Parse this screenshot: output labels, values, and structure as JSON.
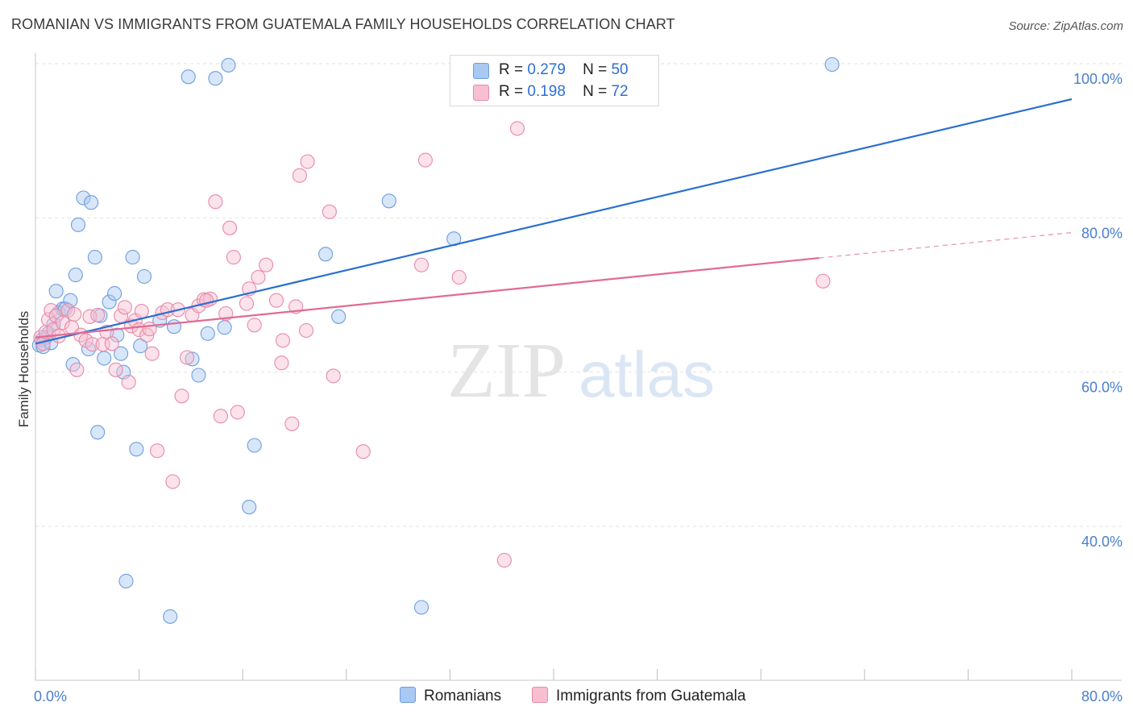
{
  "title": "ROMANIAN VS IMMIGRANTS FROM GUATEMALA FAMILY HOUSEHOLDS CORRELATION CHART",
  "source": "Source: ZipAtlas.com",
  "watermark": {
    "zip": "ZIP",
    "atlas": "atlas"
  },
  "legend": {
    "r_label": "R =",
    "n_label": "N =",
    "rows": [
      {
        "r": "0.279",
        "n": "50",
        "color": "#a9c8f2",
        "border": "#6d9ee0"
      },
      {
        "r": "0.198",
        "n": "72",
        "color": "#f8bfd0",
        "border": "#e88aa8"
      }
    ]
  },
  "bottom_legend": [
    "Romanians",
    "Immigrants from Guatemala"
  ],
  "chart_data": {
    "type": "scatter",
    "title": "ROMANIAN VS IMMIGRANTS FROM GUATEMALA FAMILY HOUSEHOLDS CORRELATION CHART",
    "xlabel": "",
    "ylabel": "Family Households",
    "xlim": [
      0,
      80
    ],
    "ylim": [
      20,
      100
    ],
    "x_tick_labels": [
      "0.0%",
      "80.0%"
    ],
    "y_ticks": [
      40,
      60,
      80,
      100
    ],
    "y_tick_labels": [
      "40.0%",
      "60.0%",
      "80.0%",
      "100.0%"
    ],
    "grid": true,
    "legend_position": "top-center",
    "series": [
      {
        "name": "Romanians",
        "color": "#6d9ee0",
        "fill": "#a9c8f2",
        "trend": {
          "x": [
            0,
            80
          ],
          "y": [
            63.7,
            95.4
          ]
        },
        "points": [
          [
            0.3,
            63.5
          ],
          [
            0.5,
            64.2
          ],
          [
            0.6,
            63.3
          ],
          [
            0.8,
            64.5
          ],
          [
            1.0,
            65.0
          ],
          [
            1.2,
            63.8
          ],
          [
            1.4,
            66.2
          ],
          [
            1.6,
            70.5
          ],
          [
            1.8,
            67.7
          ],
          [
            2.1,
            68.2
          ],
          [
            2.3,
            68.2
          ],
          [
            2.7,
            69.3
          ],
          [
            2.9,
            61.0
          ],
          [
            3.1,
            72.6
          ],
          [
            3.3,
            79.1
          ],
          [
            3.7,
            82.6
          ],
          [
            4.1,
            63.0
          ],
          [
            4.3,
            82.0
          ],
          [
            4.6,
            74.9
          ],
          [
            4.8,
            52.2
          ],
          [
            5.0,
            67.3
          ],
          [
            5.3,
            61.8
          ],
          [
            5.7,
            69.1
          ],
          [
            6.1,
            70.2
          ],
          [
            6.3,
            64.8
          ],
          [
            6.6,
            62.4
          ],
          [
            6.8,
            60.0
          ],
          [
            7.0,
            32.9
          ],
          [
            7.5,
            74.9
          ],
          [
            7.8,
            50.0
          ],
          [
            8.1,
            63.4
          ],
          [
            8.4,
            72.4
          ],
          [
            9.6,
            66.7
          ],
          [
            10.4,
            28.3
          ],
          [
            10.7,
            65.9
          ],
          [
            11.8,
            98.3
          ],
          [
            12.1,
            61.7
          ],
          [
            12.6,
            59.6
          ],
          [
            13.3,
            65.0
          ],
          [
            13.9,
            98.1
          ],
          [
            14.6,
            65.8
          ],
          [
            14.9,
            99.8
          ],
          [
            16.5,
            42.5
          ],
          [
            16.9,
            50.5
          ],
          [
            22.4,
            75.3
          ],
          [
            23.4,
            67.2
          ],
          [
            27.3,
            82.2
          ],
          [
            29.8,
            29.5
          ],
          [
            32.3,
            77.3
          ],
          [
            61.5,
            99.9
          ]
        ]
      },
      {
        "name": "Immigrants from Guatemala",
        "color": "#e88aa8",
        "fill": "#f8bfd0",
        "trend": {
          "x": [
            0,
            60.5
          ],
          "y": [
            64.5,
            74.8
          ]
        },
        "trend_dashed": {
          "x": [
            60.5,
            80
          ],
          "y": [
            74.8,
            78.1
          ]
        },
        "points": [
          [
            0.4,
            64.5
          ],
          [
            0.6,
            63.7
          ],
          [
            0.8,
            65.2
          ],
          [
            1.0,
            66.8
          ],
          [
            1.2,
            68.0
          ],
          [
            1.4,
            65.5
          ],
          [
            1.6,
            67.3
          ],
          [
            1.8,
            64.7
          ],
          [
            2.1,
            66.4
          ],
          [
            2.5,
            68.0
          ],
          [
            2.8,
            65.8
          ],
          [
            3.0,
            67.5
          ],
          [
            3.2,
            60.3
          ],
          [
            3.5,
            64.8
          ],
          [
            3.9,
            64.1
          ],
          [
            4.2,
            67.2
          ],
          [
            4.4,
            63.6
          ],
          [
            4.8,
            67.4
          ],
          [
            5.2,
            63.6
          ],
          [
            5.5,
            65.2
          ],
          [
            5.9,
            63.7
          ],
          [
            6.2,
            60.3
          ],
          [
            6.6,
            67.3
          ],
          [
            6.9,
            68.4
          ],
          [
            7.2,
            58.7
          ],
          [
            7.4,
            66.0
          ],
          [
            7.7,
            66.7
          ],
          [
            8.0,
            65.5
          ],
          [
            8.2,
            67.9
          ],
          [
            8.6,
            64.8
          ],
          [
            8.8,
            65.6
          ],
          [
            9.0,
            62.4
          ],
          [
            9.4,
            49.8
          ],
          [
            9.8,
            67.7
          ],
          [
            10.2,
            68.1
          ],
          [
            10.6,
            45.8
          ],
          [
            11.0,
            68.1
          ],
          [
            11.3,
            56.9
          ],
          [
            11.7,
            61.9
          ],
          [
            12.1,
            67.4
          ],
          [
            12.6,
            68.6
          ],
          [
            13.0,
            69.4
          ],
          [
            13.5,
            69.5
          ],
          [
            13.9,
            82.1
          ],
          [
            14.3,
            54.3
          ],
          [
            14.7,
            67.6
          ],
          [
            15.0,
            78.7
          ],
          [
            15.3,
            74.9
          ],
          [
            15.6,
            54.8
          ],
          [
            16.3,
            68.9
          ],
          [
            16.5,
            70.8
          ],
          [
            16.9,
            66.1
          ],
          [
            17.2,
            72.3
          ],
          [
            17.8,
            73.9
          ],
          [
            18.6,
            69.3
          ],
          [
            19.0,
            61.2
          ],
          [
            19.1,
            64.1
          ],
          [
            19.8,
            53.3
          ],
          [
            20.1,
            68.5
          ],
          [
            20.4,
            85.5
          ],
          [
            20.9,
            65.4
          ],
          [
            21.0,
            87.3
          ],
          [
            22.7,
            80.8
          ],
          [
            23.0,
            59.5
          ],
          [
            25.3,
            49.7
          ],
          [
            29.8,
            73.9
          ],
          [
            30.1,
            87.5
          ],
          [
            32.7,
            72.3
          ],
          [
            36.2,
            35.6
          ],
          [
            37.2,
            91.6
          ],
          [
            60.8,
            71.8
          ],
          [
            13.2,
            69.3
          ]
        ]
      }
    ]
  }
}
